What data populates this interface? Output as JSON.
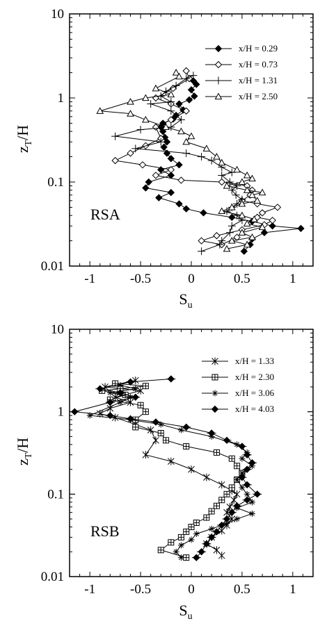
{
  "chart_data": [
    {
      "type": "line",
      "panel_label": "RSA",
      "xlabel_main": "S",
      "xlabel_sub": "u",
      "ylabel_main": "z",
      "ylabel_sub": "T",
      "ylabel_suffix": "/H",
      "xlim": [
        -1.2,
        1.2
      ],
      "ylim": [
        0.01,
        10
      ],
      "y_scale": "log",
      "x_ticks": [
        -1,
        -0.5,
        0,
        0.5,
        1
      ],
      "x_tick_labels": [
        "-1",
        "-0.5",
        "0",
        "0.5",
        "1"
      ],
      "y_ticks": [
        0.01,
        0.1,
        1,
        10
      ],
      "y_tick_labels": [
        "0.01",
        "0.1",
        "1",
        "10"
      ],
      "legend_position": "top-right",
      "series": [
        {
          "name": "x/H = 0.29",
          "marker": "diamond-filled",
          "points": [
            [
              0.02,
              1.6
            ],
            [
              0.05,
              1.45
            ],
            [
              0.0,
              1.25
            ],
            [
              0.03,
              1.05
            ],
            [
              -0.02,
              0.95
            ],
            [
              -0.12,
              0.85
            ],
            [
              -0.08,
              0.72
            ],
            [
              -0.15,
              0.62
            ],
            [
              -0.18,
              0.56
            ],
            [
              -0.28,
              0.5
            ],
            [
              -0.3,
              0.45
            ],
            [
              -0.28,
              0.4
            ],
            [
              -0.26,
              0.34
            ],
            [
              -0.24,
              0.3
            ],
            [
              -0.27,
              0.26
            ],
            [
              -0.24,
              0.22
            ],
            [
              -0.2,
              0.19
            ],
            [
              -0.12,
              0.16
            ],
            [
              -0.3,
              0.14
            ],
            [
              -0.2,
              0.12
            ],
            [
              -0.42,
              0.1
            ],
            [
              -0.45,
              0.085
            ],
            [
              -0.2,
              0.075
            ],
            [
              -0.32,
              0.065
            ],
            [
              -0.12,
              0.055
            ],
            [
              -0.05,
              0.048
            ],
            [
              0.12,
              0.043
            ],
            [
              0.4,
              0.038
            ],
            [
              0.6,
              0.034
            ],
            [
              0.8,
              0.03
            ],
            [
              1.08,
              0.028
            ],
            [
              0.72,
              0.025
            ],
            [
              0.6,
              0.021
            ],
            [
              0.58,
              0.018
            ],
            [
              0.52,
              0.015
            ]
          ]
        },
        {
          "name": "x/H = 0.73",
          "marker": "diamond-open",
          "points": [
            [
              -0.05,
              2.1
            ],
            [
              -0.02,
              1.7
            ],
            [
              -0.18,
              1.3
            ],
            [
              -0.35,
              1.0
            ],
            [
              -0.2,
              0.85
            ],
            [
              -0.05,
              0.7
            ],
            [
              -0.2,
              0.55
            ],
            [
              -0.35,
              0.45
            ],
            [
              -0.3,
              0.33
            ],
            [
              -0.45,
              0.27
            ],
            [
              -0.6,
              0.22
            ],
            [
              -0.75,
              0.18
            ],
            [
              -0.48,
              0.16
            ],
            [
              -0.2,
              0.14
            ],
            [
              -0.35,
              0.12
            ],
            [
              -0.1,
              0.105
            ],
            [
              0.3,
              0.1
            ],
            [
              0.55,
              0.09
            ],
            [
              0.6,
              0.08
            ],
            [
              0.58,
              0.07
            ],
            [
              0.5,
              0.06
            ],
            [
              0.65,
              0.055
            ],
            [
              0.85,
              0.05
            ],
            [
              0.7,
              0.043
            ],
            [
              0.65,
              0.038
            ],
            [
              0.8,
              0.035
            ],
            [
              0.72,
              0.031
            ],
            [
              0.5,
              0.027
            ],
            [
              0.25,
              0.023
            ],
            [
              0.1,
              0.02
            ],
            [
              0.3,
              0.018
            ],
            [
              0.45,
              0.022
            ]
          ]
        },
        {
          "name": "x/H = 1.31",
          "marker": "plus",
          "points": [
            [
              0.02,
              1.85
            ],
            [
              -0.05,
              1.7
            ],
            [
              -0.15,
              1.4
            ],
            [
              -0.25,
              1.2
            ],
            [
              -0.3,
              1.05
            ],
            [
              -0.2,
              0.9
            ],
            [
              -0.4,
              0.85
            ],
            [
              -0.2,
              0.7
            ],
            [
              -0.1,
              0.55
            ],
            [
              -0.2,
              0.45
            ],
            [
              -0.5,
              0.42
            ],
            [
              -0.75,
              0.35
            ],
            [
              -0.3,
              0.3
            ],
            [
              -0.55,
              0.25
            ],
            [
              -0.05,
              0.22
            ],
            [
              0.1,
              0.2
            ],
            [
              0.2,
              0.18
            ],
            [
              0.3,
              0.15
            ],
            [
              0.4,
              0.13
            ],
            [
              0.3,
              0.12
            ],
            [
              0.38,
              0.1
            ],
            [
              0.45,
              0.09
            ],
            [
              0.4,
              0.08
            ],
            [
              0.44,
              0.07
            ],
            [
              0.5,
              0.062
            ],
            [
              0.45,
              0.055
            ],
            [
              0.4,
              0.05
            ],
            [
              0.35,
              0.045
            ],
            [
              0.45,
              0.04
            ],
            [
              0.5,
              0.035
            ],
            [
              0.4,
              0.03
            ],
            [
              0.38,
              0.025
            ],
            [
              0.3,
              0.02
            ],
            [
              0.28,
              0.018
            ],
            [
              0.1,
              0.015
            ]
          ]
        },
        {
          "name": "x/H = 2.50",
          "marker": "triangle-open",
          "points": [
            [
              -0.15,
              2.0
            ],
            [
              -0.12,
              1.8
            ],
            [
              -0.35,
              1.3
            ],
            [
              -0.2,
              1.1
            ],
            [
              -0.45,
              1.0
            ],
            [
              -0.6,
              0.9
            ],
            [
              -0.9,
              0.7
            ],
            [
              -0.6,
              0.65
            ],
            [
              -0.45,
              0.55
            ],
            [
              -0.25,
              0.45
            ],
            [
              -0.1,
              0.4
            ],
            [
              0.0,
              0.35
            ],
            [
              -0.05,
              0.3
            ],
            [
              0.15,
              0.25
            ],
            [
              0.25,
              0.2
            ],
            [
              0.3,
              0.17
            ],
            [
              0.45,
              0.14
            ],
            [
              0.55,
              0.12
            ],
            [
              0.6,
              0.11
            ],
            [
              0.5,
              0.1
            ],
            [
              0.35,
              0.09
            ],
            [
              0.55,
              0.08
            ],
            [
              0.7,
              0.075
            ],
            [
              0.6,
              0.07
            ],
            [
              0.65,
              0.06
            ],
            [
              0.5,
              0.055
            ],
            [
              0.4,
              0.05
            ],
            [
              0.3,
              0.045
            ],
            [
              0.5,
              0.04
            ],
            [
              0.62,
              0.036
            ],
            [
              0.55,
              0.032
            ],
            [
              0.7,
              0.029
            ],
            [
              0.5,
              0.025
            ],
            [
              0.6,
              0.022
            ],
            [
              0.4,
              0.02
            ],
            [
              0.55,
              0.018
            ],
            [
              0.35,
              0.016
            ]
          ]
        }
      ]
    },
    {
      "type": "line",
      "panel_label": "RSB",
      "xlabel_main": "S",
      "xlabel_sub": "u",
      "ylabel_main": "z",
      "ylabel_sub": "T",
      "ylabel_suffix": "/H",
      "xlim": [
        -1.2,
        1.2
      ],
      "ylim": [
        0.01,
        10
      ],
      "y_scale": "log",
      "x_ticks": [
        -1,
        -0.5,
        0,
        0.5,
        1
      ],
      "x_tick_labels": [
        "-1",
        "-0.5",
        "0",
        "0.5",
        "1"
      ],
      "y_ticks": [
        0.01,
        0.1,
        1,
        10
      ],
      "y_tick_labels": [
        "0.01",
        "0.1",
        "1",
        "10"
      ],
      "legend_position": "top-right",
      "series": [
        {
          "name": "x/H = 1.33",
          "marker": "asterisk",
          "points": [
            [
              -0.55,
              2.4
            ],
            [
              -0.85,
              2.0
            ],
            [
              -0.5,
              1.8
            ],
            [
              -0.75,
              1.5
            ],
            [
              -0.6,
              1.3
            ],
            [
              -0.8,
              1.1
            ],
            [
              -0.9,
              0.95
            ],
            [
              -0.75,
              0.85
            ],
            [
              -0.55,
              0.7
            ],
            [
              -0.4,
              0.6
            ],
            [
              -0.35,
              0.45
            ],
            [
              -0.45,
              0.3
            ],
            [
              -0.2,
              0.25
            ],
            [
              0.0,
              0.2
            ],
            [
              0.15,
              0.16
            ],
            [
              0.3,
              0.13
            ],
            [
              0.4,
              0.11
            ],
            [
              0.45,
              0.1
            ],
            [
              0.42,
              0.085
            ],
            [
              0.38,
              0.07
            ],
            [
              0.35,
              0.06
            ],
            [
              0.4,
              0.05
            ],
            [
              0.35,
              0.042
            ],
            [
              0.3,
              0.036
            ],
            [
              0.2,
              0.03
            ],
            [
              0.15,
              0.025
            ],
            [
              0.25,
              0.021
            ],
            [
              0.3,
              0.018
            ]
          ]
        },
        {
          "name": "x/H = 2.30",
          "marker": "square-plus",
          "points": [
            [
              -0.75,
              2.2
            ],
            [
              -0.45,
              2.05
            ],
            [
              -0.7,
              1.9
            ],
            [
              -0.88,
              1.8
            ],
            [
              -0.65,
              1.6
            ],
            [
              -0.8,
              1.4
            ],
            [
              -0.5,
              1.2
            ],
            [
              -0.45,
              1.0
            ],
            [
              -0.55,
              0.8
            ],
            [
              -0.55,
              0.65
            ],
            [
              -0.3,
              0.55
            ],
            [
              -0.25,
              0.45
            ],
            [
              -0.05,
              0.38
            ],
            [
              0.25,
              0.32
            ],
            [
              0.4,
              0.27
            ],
            [
              0.45,
              0.22
            ],
            [
              0.5,
              0.18
            ],
            [
              0.45,
              0.15
            ],
            [
              0.4,
              0.12
            ],
            [
              0.35,
              0.1
            ],
            [
              0.3,
              0.085
            ],
            [
              0.25,
              0.072
            ],
            [
              0.2,
              0.062
            ],
            [
              0.15,
              0.052
            ],
            [
              0.05,
              0.045
            ],
            [
              0.0,
              0.04
            ],
            [
              -0.05,
              0.035
            ],
            [
              -0.1,
              0.03
            ],
            [
              -0.2,
              0.026
            ],
            [
              -0.3,
              0.021
            ],
            [
              -0.05,
              0.017
            ]
          ]
        },
        {
          "name": "x/H = 3.06",
          "marker": "star",
          "points": [
            [
              -0.7,
              2.1
            ],
            [
              -0.55,
              1.9
            ],
            [
              -0.8,
              1.7
            ],
            [
              -0.6,
              1.5
            ],
            [
              -0.7,
              1.3
            ],
            [
              -1.0,
              0.9
            ],
            [
              -0.6,
              0.8
            ],
            [
              -0.3,
              0.7
            ],
            [
              -0.1,
              0.6
            ],
            [
              0.2,
              0.5
            ],
            [
              0.45,
              0.4
            ],
            [
              0.55,
              0.32
            ],
            [
              0.5,
              0.27
            ],
            [
              0.6,
              0.22
            ],
            [
              0.5,
              0.18
            ],
            [
              0.45,
              0.15
            ],
            [
              0.5,
              0.12
            ],
            [
              0.55,
              0.1
            ],
            [
              0.6,
              0.08
            ],
            [
              0.45,
              0.068
            ],
            [
              0.6,
              0.058
            ],
            [
              0.45,
              0.05
            ],
            [
              0.35,
              0.044
            ],
            [
              0.2,
              0.038
            ],
            [
              0.05,
              0.033
            ],
            [
              0.0,
              0.028
            ],
            [
              -0.1,
              0.024
            ],
            [
              -0.15,
              0.02
            ],
            [
              -0.1,
              0.017
            ]
          ]
        },
        {
          "name": "x/H = 4.03",
          "marker": "diamond-plus",
          "points": [
            [
              -0.2,
              2.5
            ],
            [
              -0.6,
              2.3
            ],
            [
              -0.9,
              1.9
            ],
            [
              -0.7,
              1.7
            ],
            [
              -0.55,
              1.5
            ],
            [
              -0.8,
              1.3
            ],
            [
              -1.15,
              1.0
            ],
            [
              -0.8,
              0.9
            ],
            [
              -0.6,
              0.82
            ],
            [
              -0.35,
              0.75
            ],
            [
              -0.05,
              0.65
            ],
            [
              0.2,
              0.55
            ],
            [
              0.35,
              0.45
            ],
            [
              0.5,
              0.38
            ],
            [
              0.55,
              0.3
            ],
            [
              0.6,
              0.24
            ],
            [
              0.55,
              0.2
            ],
            [
              0.5,
              0.16
            ],
            [
              0.55,
              0.13
            ],
            [
              0.65,
              0.1
            ],
            [
              0.55,
              0.085
            ],
            [
              0.45,
              0.072
            ],
            [
              0.4,
              0.06
            ],
            [
              0.35,
              0.05
            ],
            [
              0.3,
              0.042
            ],
            [
              0.25,
              0.035
            ],
            [
              0.2,
              0.03
            ],
            [
              0.15,
              0.025
            ],
            [
              0.1,
              0.02
            ],
            [
              0.05,
              0.017
            ]
          ]
        }
      ]
    }
  ]
}
